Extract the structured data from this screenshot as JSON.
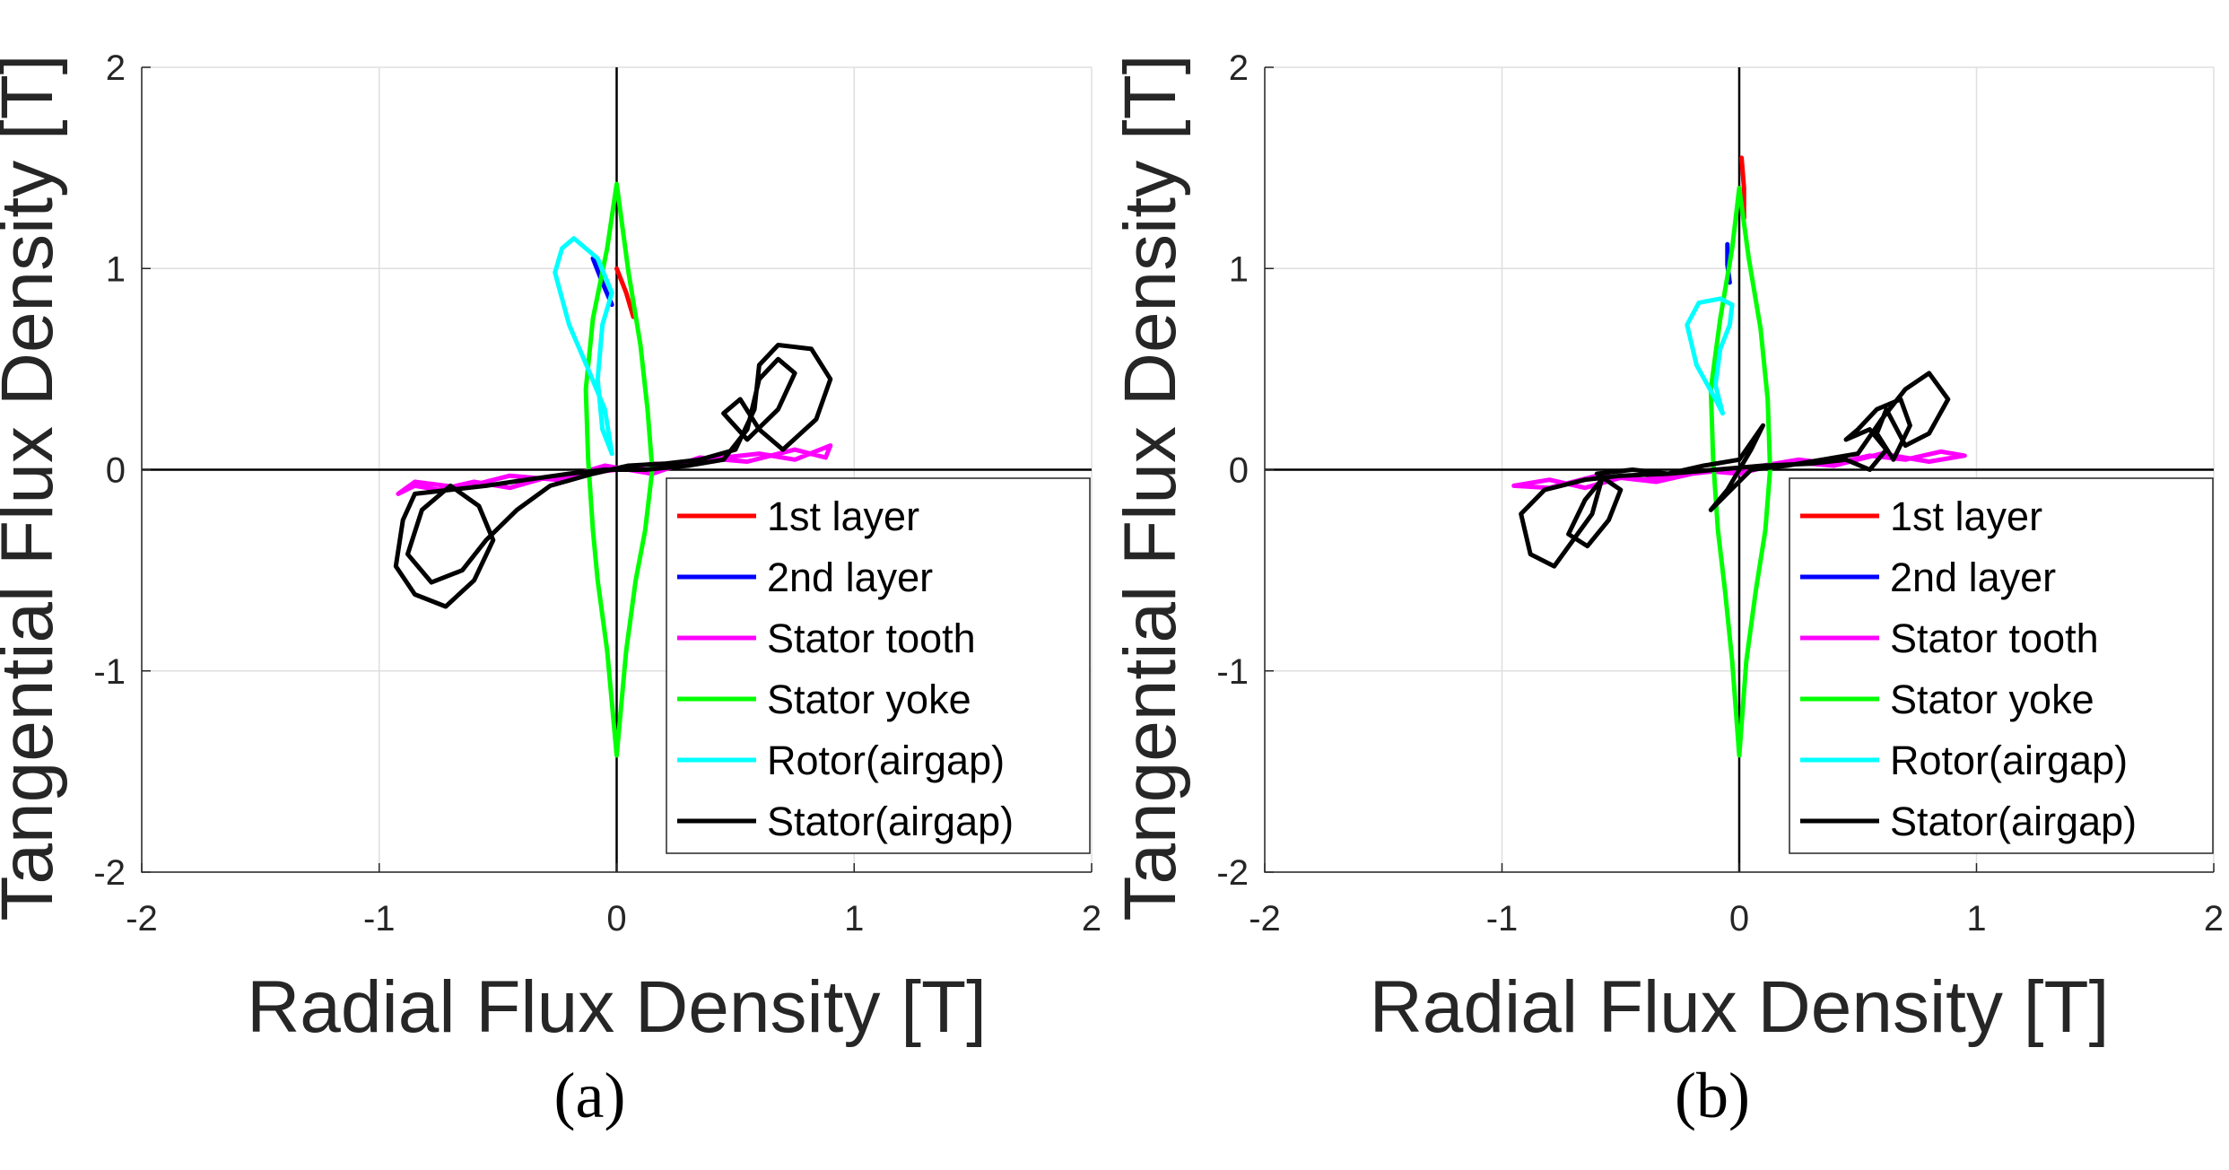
{
  "chart_data": [
    {
      "type": "line",
      "caption": "(a)",
      "xlabel": "Radial Flux Density [T]",
      "ylabel": "Tangential Flux Density [T]",
      "xlim": [
        -2,
        2
      ],
      "ylim": [
        -2,
        2
      ],
      "xticks": [
        "-2",
        "-1",
        "0",
        "1",
        "2"
      ],
      "yticks": [
        "-2",
        "-1",
        "0",
        "1",
        "2"
      ],
      "grid": true,
      "legend_position": "bottom-right",
      "series": [
        {
          "name": "1st layer",
          "color": "#ff0000",
          "points": [
            [
              0.0,
              1.0
            ],
            [
              0.04,
              0.88
            ],
            [
              0.07,
              0.76
            ]
          ]
        },
        {
          "name": "2nd layer",
          "color": "#0000ff",
          "points": [
            [
              -0.1,
              1.05
            ],
            [
              -0.06,
              0.93
            ],
            [
              -0.02,
              0.82
            ]
          ]
        },
        {
          "name": "Stator tooth",
          "color": "#ff00ff",
          "points": [
            [
              -0.92,
              -0.12
            ],
            [
              -0.85,
              -0.08
            ],
            [
              -0.75,
              -0.1
            ],
            [
              -0.6,
              -0.06
            ],
            [
              -0.45,
              -0.09
            ],
            [
              -0.3,
              -0.04
            ],
            [
              -0.15,
              -0.02
            ],
            [
              0.0,
              0.0
            ],
            [
              0.15,
              0.03
            ],
            [
              0.3,
              0.02
            ],
            [
              0.45,
              0.06
            ],
            [
              0.6,
              0.08
            ],
            [
              0.75,
              0.05
            ],
            [
              0.9,
              0.12
            ],
            [
              0.88,
              0.06
            ],
            [
              0.75,
              0.1
            ],
            [
              0.55,
              0.04
            ],
            [
              0.35,
              0.06
            ],
            [
              0.15,
              -0.02
            ],
            [
              -0.05,
              0.02
            ],
            [
              -0.25,
              -0.05
            ],
            [
              -0.45,
              -0.03
            ],
            [
              -0.65,
              -0.09
            ],
            [
              -0.85,
              -0.06
            ],
            [
              -0.92,
              -0.12
            ]
          ]
        },
        {
          "name": "Stator yoke",
          "color": "#00ff00",
          "points": [
            [
              0.0,
              1.42
            ],
            [
              -0.04,
              1.1
            ],
            [
              -0.1,
              0.75
            ],
            [
              -0.13,
              0.4
            ],
            [
              -0.12,
              0.05
            ],
            [
              -0.1,
              -0.3
            ],
            [
              -0.08,
              -0.55
            ],
            [
              -0.04,
              -0.9
            ],
            [
              0.0,
              -1.42
            ],
            [
              0.04,
              -0.9
            ],
            [
              0.08,
              -0.55
            ],
            [
              0.12,
              -0.3
            ],
            [
              0.15,
              0.0
            ],
            [
              0.13,
              0.3
            ],
            [
              0.1,
              0.62
            ],
            [
              0.05,
              0.98
            ],
            [
              0.0,
              1.42
            ]
          ]
        },
        {
          "name": "Rotor(airgap)",
          "color": "#00ffff",
          "points": [
            [
              -0.18,
              1.15
            ],
            [
              -0.23,
              1.1
            ],
            [
              -0.26,
              0.98
            ],
            [
              -0.2,
              0.72
            ],
            [
              -0.12,
              0.5
            ],
            [
              -0.05,
              0.3
            ],
            [
              -0.02,
              0.08
            ],
            [
              -0.06,
              0.2
            ],
            [
              -0.08,
              0.45
            ],
            [
              -0.06,
              0.72
            ],
            [
              -0.02,
              0.88
            ],
            [
              -0.08,
              1.05
            ],
            [
              -0.18,
              1.15
            ]
          ]
        },
        {
          "name": "Stator(airgap)",
          "color": "#000000",
          "points": [
            [
              -0.85,
              -0.12
            ],
            [
              -0.9,
              -0.25
            ],
            [
              -0.93,
              -0.48
            ],
            [
              -0.85,
              -0.62
            ],
            [
              -0.72,
              -0.68
            ],
            [
              -0.6,
              -0.55
            ],
            [
              -0.52,
              -0.35
            ],
            [
              -0.58,
              -0.18
            ],
            [
              -0.7,
              -0.08
            ],
            [
              -0.82,
              -0.2
            ],
            [
              -0.88,
              -0.42
            ],
            [
              -0.78,
              -0.56
            ],
            [
              -0.65,
              -0.5
            ],
            [
              -0.55,
              -0.35
            ],
            [
              -0.42,
              -0.2
            ],
            [
              -0.28,
              -0.08
            ],
            [
              -0.1,
              -0.02
            ],
            [
              0.05,
              0.02
            ],
            [
              0.2,
              0.03
            ],
            [
              0.35,
              0.05
            ],
            [
              0.5,
              0.1
            ],
            [
              0.58,
              0.3
            ],
            [
              0.6,
              0.52
            ],
            [
              0.68,
              0.62
            ],
            [
              0.82,
              0.6
            ],
            [
              0.9,
              0.45
            ],
            [
              0.84,
              0.25
            ],
            [
              0.7,
              0.1
            ],
            [
              0.6,
              0.2
            ],
            [
              0.52,
              0.35
            ],
            [
              0.45,
              0.28
            ],
            [
              0.55,
              0.15
            ],
            [
              0.68,
              0.3
            ],
            [
              0.75,
              0.48
            ],
            [
              0.68,
              0.55
            ],
            [
              0.6,
              0.45
            ],
            [
              0.55,
              0.2
            ],
            [
              0.45,
              0.05
            ],
            [
              0.3,
              0.02
            ],
            [
              0.12,
              0.0
            ],
            [
              -0.05,
              0.0
            ],
            [
              -0.2,
              -0.02
            ],
            [
              -0.38,
              -0.05
            ],
            [
              -0.55,
              -0.08
            ],
            [
              -0.7,
              -0.1
            ],
            [
              -0.85,
              -0.12
            ]
          ]
        }
      ]
    },
    {
      "type": "line",
      "caption": "(b)",
      "xlabel": "Radial Flux Density [T]",
      "ylabel": "Tangential Flux Density [T]",
      "xlim": [
        -2,
        2
      ],
      "ylim": [
        -2,
        2
      ],
      "xticks": [
        "-2",
        "-1",
        "0",
        "1",
        "2"
      ],
      "yticks": [
        "-2",
        "-1",
        "0",
        "1",
        "2"
      ],
      "grid": true,
      "legend_position": "bottom-right",
      "series": [
        {
          "name": "1st layer",
          "color": "#ff0000",
          "points": [
            [
              0.01,
              1.55
            ],
            [
              0.02,
              1.4
            ],
            [
              0.02,
              1.25
            ]
          ]
        },
        {
          "name": "2nd layer",
          "color": "#0000ff",
          "points": [
            [
              -0.05,
              1.12
            ],
            [
              -0.05,
              1.02
            ],
            [
              -0.04,
              0.93
            ]
          ]
        },
        {
          "name": "Stator tooth",
          "color": "#ff00ff",
          "points": [
            [
              -0.95,
              -0.08
            ],
            [
              -0.8,
              -0.05
            ],
            [
              -0.65,
              -0.09
            ],
            [
              -0.5,
              -0.04
            ],
            [
              -0.35,
              -0.06
            ],
            [
              -0.2,
              -0.02
            ],
            [
              -0.05,
              0.0
            ],
            [
              0.1,
              0.02
            ],
            [
              0.25,
              0.05
            ],
            [
              0.4,
              0.03
            ],
            [
              0.55,
              0.07
            ],
            [
              0.7,
              0.05
            ],
            [
              0.85,
              0.09
            ],
            [
              0.95,
              0.07
            ],
            [
              0.8,
              0.04
            ],
            [
              0.6,
              0.08
            ],
            [
              0.4,
              0.02
            ],
            [
              0.2,
              0.04
            ],
            [
              0.0,
              -0.02
            ],
            [
              -0.2,
              0.0
            ],
            [
              -0.4,
              -0.05
            ],
            [
              -0.6,
              -0.03
            ],
            [
              -0.8,
              -0.09
            ],
            [
              -0.95,
              -0.08
            ]
          ]
        },
        {
          "name": "Stator yoke",
          "color": "#00ff00",
          "points": [
            [
              0.0,
              1.4
            ],
            [
              -0.03,
              1.1
            ],
            [
              -0.08,
              0.75
            ],
            [
              -0.12,
              0.4
            ],
            [
              -0.11,
              0.05
            ],
            [
              -0.09,
              -0.3
            ],
            [
              -0.06,
              -0.6
            ],
            [
              -0.03,
              -0.95
            ],
            [
              0.0,
              -1.42
            ],
            [
              0.03,
              -0.95
            ],
            [
              0.07,
              -0.6
            ],
            [
              0.11,
              -0.3
            ],
            [
              0.13,
              0.0
            ],
            [
              0.12,
              0.35
            ],
            [
              0.09,
              0.7
            ],
            [
              0.04,
              1.05
            ],
            [
              0.0,
              1.4
            ]
          ]
        },
        {
          "name": "Rotor(airgap)",
          "color": "#00ffff",
          "points": [
            [
              -0.08,
              0.85
            ],
            [
              -0.17,
              0.83
            ],
            [
              -0.22,
              0.72
            ],
            [
              -0.18,
              0.52
            ],
            [
              -0.1,
              0.35
            ],
            [
              -0.07,
              0.28
            ],
            [
              -0.1,
              0.42
            ],
            [
              -0.08,
              0.6
            ],
            [
              -0.04,
              0.72
            ],
            [
              -0.03,
              0.82
            ],
            [
              -0.08,
              0.85
            ]
          ]
        },
        {
          "name": "Stator(airgap)",
          "color": "#000000",
          "points": [
            [
              -0.65,
              -0.05
            ],
            [
              -0.82,
              -0.1
            ],
            [
              -0.92,
              -0.22
            ],
            [
              -0.88,
              -0.42
            ],
            [
              -0.78,
              -0.48
            ],
            [
              -0.7,
              -0.35
            ],
            [
              -0.62,
              -0.22
            ],
            [
              -0.58,
              -0.05
            ],
            [
              -0.65,
              -0.15
            ],
            [
              -0.72,
              -0.32
            ],
            [
              -0.64,
              -0.38
            ],
            [
              -0.55,
              -0.25
            ],
            [
              -0.5,
              -0.1
            ],
            [
              -0.6,
              -0.02
            ],
            [
              -0.45,
              0.0
            ],
            [
              -0.3,
              -0.02
            ],
            [
              -0.15,
              0.02
            ],
            [
              0.0,
              0.05
            ],
            [
              0.1,
              0.22
            ],
            [
              0.05,
              0.1
            ],
            [
              0.0,
              0.0
            ],
            [
              -0.05,
              -0.1
            ],
            [
              -0.12,
              -0.2
            ],
            [
              0.05,
              0.0
            ],
            [
              0.2,
              0.02
            ],
            [
              0.35,
              0.05
            ],
            [
              0.5,
              0.08
            ],
            [
              0.6,
              0.25
            ],
            [
              0.7,
              0.4
            ],
            [
              0.8,
              0.48
            ],
            [
              0.88,
              0.35
            ],
            [
              0.8,
              0.18
            ],
            [
              0.7,
              0.12
            ],
            [
              0.62,
              0.3
            ],
            [
              0.58,
              0.18
            ],
            [
              0.65,
              0.05
            ],
            [
              0.72,
              0.22
            ],
            [
              0.68,
              0.35
            ],
            [
              0.58,
              0.3
            ],
            [
              0.5,
              0.2
            ],
            [
              0.45,
              0.15
            ],
            [
              0.55,
              0.2
            ],
            [
              0.62,
              0.1
            ],
            [
              0.55,
              0.0
            ],
            [
              0.45,
              0.05
            ],
            [
              0.3,
              0.03
            ],
            [
              0.1,
              0.02
            ],
            [
              -0.1,
              0.0
            ],
            [
              -0.3,
              -0.02
            ],
            [
              -0.5,
              -0.03
            ],
            [
              -0.65,
              -0.05
            ]
          ]
        }
      ]
    }
  ]
}
